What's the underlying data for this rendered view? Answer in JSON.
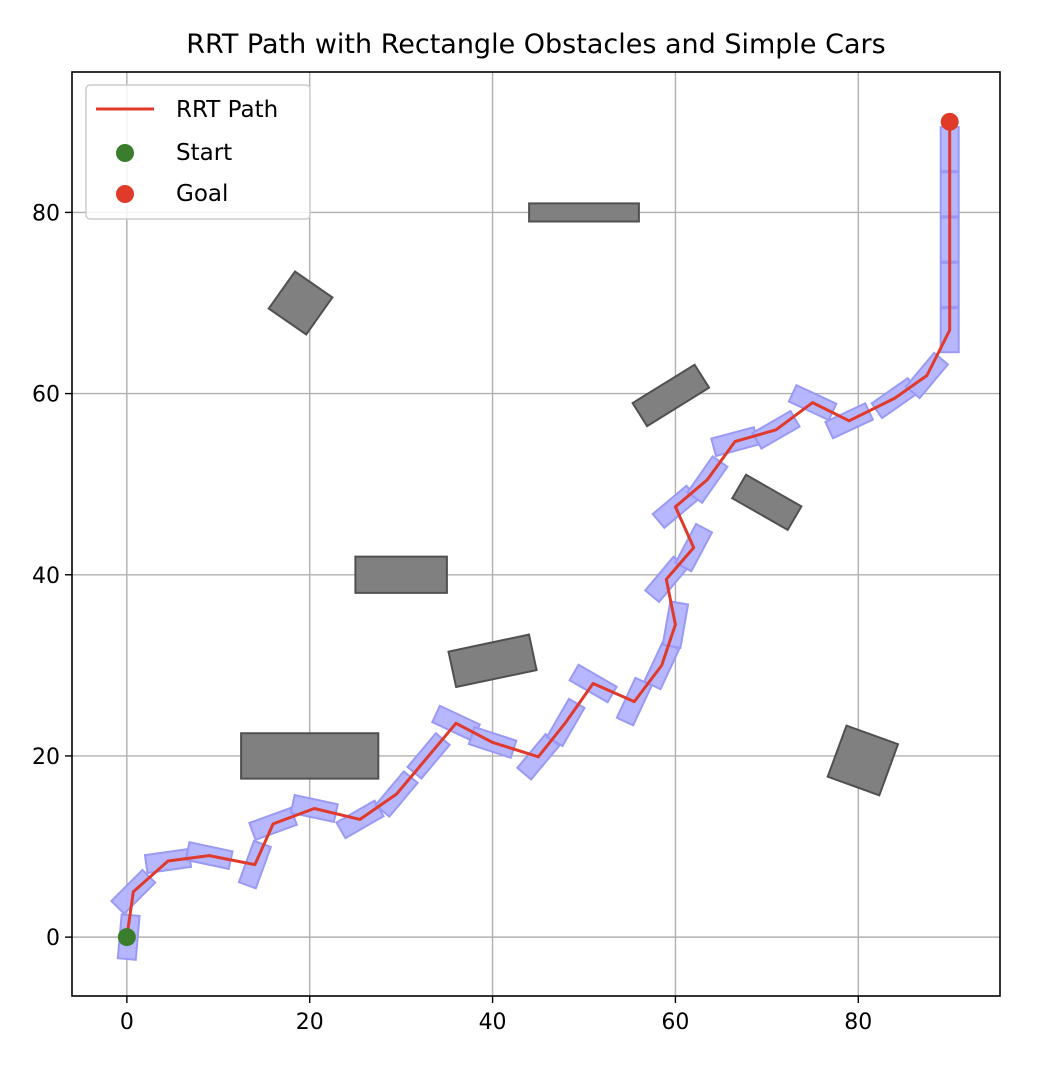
{
  "chart_data": {
    "type": "scatter",
    "title": "RRT Path with Rectangle Obstacles and Simple Cars",
    "xlabel": "",
    "ylabel": "",
    "xlim": [
      -6,
      95.5
    ],
    "ylim": [
      -6.5,
      95.5
    ],
    "xticks": [
      0,
      20,
      40,
      60,
      80
    ],
    "yticks": [
      0,
      20,
      40,
      60,
      80
    ],
    "grid": true,
    "legend_position": "top-left",
    "legend": [
      {
        "label": "RRT Path",
        "kind": "line",
        "color": "#e03a2b"
      },
      {
        "label": "Start",
        "kind": "marker",
        "color": "#3a7d2c"
      },
      {
        "label": "Goal",
        "kind": "marker",
        "color": "#e03a2b"
      }
    ],
    "colors": {
      "path": "#e03a2b",
      "start": "#3a7d2c",
      "goal": "#e03a2b",
      "obstacle_fill": "#808080",
      "obstacle_edge": "#505050",
      "car_fill": "#b3b3ff",
      "car_edge": "#9a9af5",
      "grid": "#b0b0b0"
    },
    "start": [
      0,
      0
    ],
    "goal": [
      90,
      90
    ],
    "path": [
      [
        0,
        0
      ],
      [
        0.7,
        5
      ],
      [
        4.5,
        8.4
      ],
      [
        9,
        9
      ],
      [
        14,
        8
      ],
      [
        16,
        12.5
      ],
      [
        20.5,
        14.2
      ],
      [
        25.5,
        13
      ],
      [
        29.5,
        15.8
      ],
      [
        36,
        23.6
      ],
      [
        40,
        21.5
      ],
      [
        45,
        19.9
      ],
      [
        48,
        23.7
      ],
      [
        51,
        28
      ],
      [
        55.5,
        26
      ],
      [
        58.5,
        30
      ],
      [
        60,
        34.5
      ],
      [
        59,
        39.5
      ],
      [
        62,
        43
      ],
      [
        60,
        47.5
      ],
      [
        63.5,
        50.5
      ],
      [
        66.5,
        54.7
      ],
      [
        71,
        56
      ],
      [
        75,
        59
      ],
      [
        79,
        57
      ],
      [
        84,
        59.5
      ],
      [
        87.5,
        62
      ],
      [
        90,
        67
      ],
      [
        90,
        90
      ]
    ],
    "cars": [
      {
        "x": 0.2,
        "y": 0,
        "angle": 85
      },
      {
        "x": 0.7,
        "y": 5,
        "angle": 45
      },
      {
        "x": 4.5,
        "y": 8.4,
        "angle": 8
      },
      {
        "x": 9,
        "y": 9,
        "angle": -12
      },
      {
        "x": 14,
        "y": 8,
        "angle": 70
      },
      {
        "x": 16,
        "y": 12.5,
        "angle": 20
      },
      {
        "x": 20.5,
        "y": 14.2,
        "angle": -12
      },
      {
        "x": 25.5,
        "y": 13,
        "angle": 30
      },
      {
        "x": 29.5,
        "y": 15.8,
        "angle": 50
      },
      {
        "x": 33,
        "y": 20,
        "angle": 50
      },
      {
        "x": 36,
        "y": 23.6,
        "angle": -25
      },
      {
        "x": 40,
        "y": 21.5,
        "angle": -18
      },
      {
        "x": 45,
        "y": 19.9,
        "angle": 50
      },
      {
        "x": 48,
        "y": 23.7,
        "angle": 60
      },
      {
        "x": 51,
        "y": 28,
        "angle": -30
      },
      {
        "x": 55.5,
        "y": 26,
        "angle": 65
      },
      {
        "x": 58.5,
        "y": 30,
        "angle": 65
      },
      {
        "x": 60,
        "y": 34.5,
        "angle": 80
      },
      {
        "x": 59,
        "y": 39.5,
        "angle": 50
      },
      {
        "x": 62,
        "y": 43,
        "angle": 62
      },
      {
        "x": 60,
        "y": 47.5,
        "angle": 40
      },
      {
        "x": 63.5,
        "y": 50.5,
        "angle": 55
      },
      {
        "x": 66.5,
        "y": 54.7,
        "angle": 15
      },
      {
        "x": 71,
        "y": 56,
        "angle": 30
      },
      {
        "x": 75,
        "y": 59,
        "angle": -25
      },
      {
        "x": 79,
        "y": 57,
        "angle": 25
      },
      {
        "x": 84,
        "y": 59.5,
        "angle": 35
      },
      {
        "x": 87.5,
        "y": 62,
        "angle": 50
      },
      {
        "x": 90,
        "y": 67,
        "angle": 90
      },
      {
        "x": 90,
        "y": 72,
        "angle": 90
      },
      {
        "x": 90,
        "y": 77,
        "angle": 90
      },
      {
        "x": 90,
        "y": 82,
        "angle": 90
      },
      {
        "x": 90,
        "y": 87,
        "angle": 90
      }
    ],
    "obstacles": [
      {
        "cx": 20,
        "cy": 20,
        "w": 15,
        "h": 5,
        "angle": 0
      },
      {
        "cx": 30,
        "cy": 40,
        "w": 10,
        "h": 4,
        "angle": 0
      },
      {
        "cx": 50,
        "cy": 80,
        "w": 12,
        "h": 2,
        "angle": 0
      },
      {
        "cx": 19,
        "cy": 70,
        "w": 5,
        "h": 5,
        "angle": -35
      },
      {
        "cx": 40,
        "cy": 30.5,
        "w": 9,
        "h": 4,
        "angle": 12
      },
      {
        "cx": 59.5,
        "cy": 59.8,
        "w": 8,
        "h": 3,
        "angle": 32
      },
      {
        "cx": 70,
        "cy": 48,
        "w": 7,
        "h": 3,
        "angle": -30
      },
      {
        "cx": 80.5,
        "cy": 19.5,
        "w": 6,
        "h": 6,
        "angle": -20
      }
    ]
  }
}
